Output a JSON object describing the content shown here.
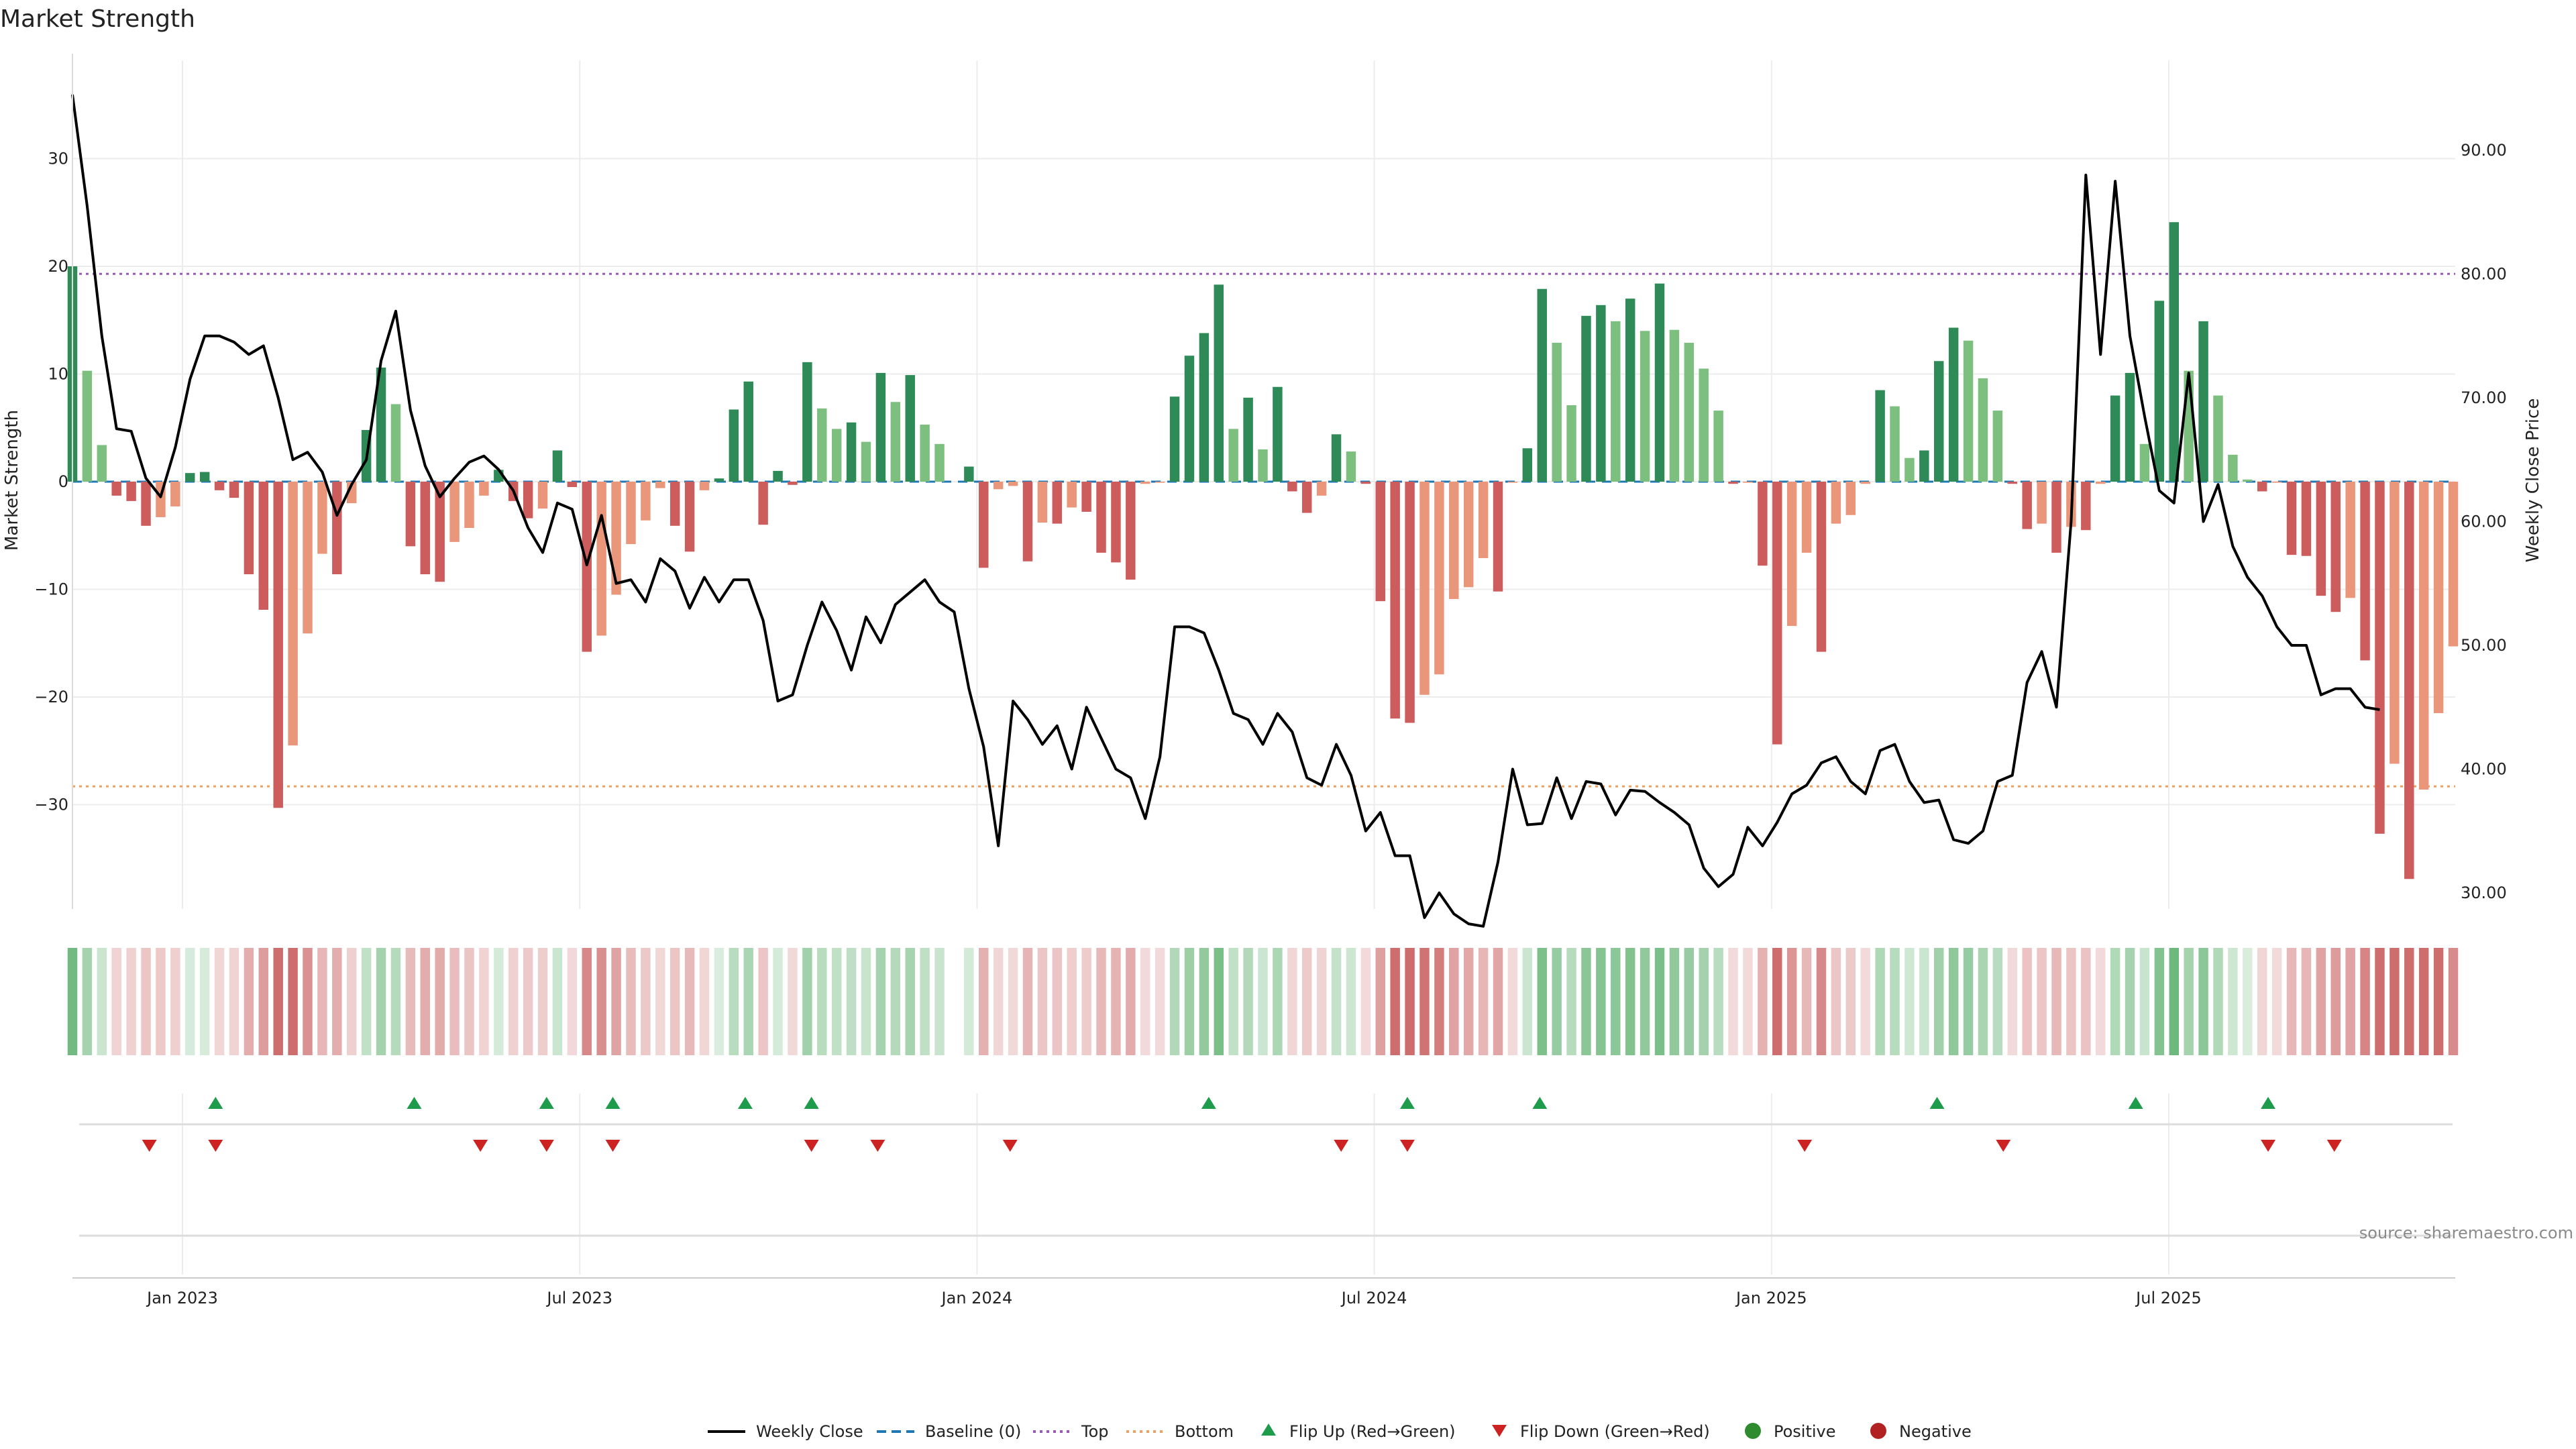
{
  "chart_data": {
    "type": "bar",
    "title": "Market Strength",
    "ylabel": "Market Strength",
    "y2label": "Weekly Close Price",
    "ylim": [
      -40,
      38
    ],
    "y2lim": [
      28,
      97
    ],
    "yticks": [
      30,
      20,
      10,
      0,
      -10,
      -20,
      -30
    ],
    "y2ticks": [
      "90.00",
      "80.00",
      "70.00",
      "60.00",
      "50.00",
      "40.00",
      "30.00"
    ],
    "xticks": [
      "Jan 2023",
      "Jul 2023",
      "Jan 2024",
      "Jul 2024",
      "Jan 2025",
      "Jul 2025"
    ],
    "reference_lines": {
      "top": 19.3,
      "bottom": -28.3,
      "baseline": 0
    },
    "grid": true,
    "legend_position": "bottom-center",
    "source": "source: sharemaestro.com",
    "strength": [
      20.0,
      10.3,
      3.4,
      -1.3,
      -1.8,
      -4.1,
      -3.3,
      -2.3,
      0.8,
      0.9,
      -0.8,
      -1.5,
      -8.6,
      -11.9,
      -30.3,
      -24.5,
      -14.1,
      -6.7,
      -8.6,
      -2.0,
      4.8,
      10.6,
      7.2,
      -6.0,
      -8.6,
      -9.3,
      -5.6,
      -4.3,
      -1.3,
      1.1,
      -1.8,
      -3.4,
      -2.5,
      2.9,
      -0.5,
      -15.8,
      -14.3,
      -10.5,
      -5.8,
      -3.6,
      -0.6,
      -4.1,
      -6.5,
      -0.8,
      0.3,
      6.7,
      9.3,
      -4.0,
      1.0,
      -0.3,
      11.1,
      6.8,
      4.9,
      5.5,
      3.7,
      10.1,
      7.4,
      9.9,
      5.3,
      3.5,
      null,
      1.4,
      -8.0,
      -0.7,
      -0.4,
      -7.4,
      -3.8,
      -3.9,
      -2.4,
      -2.8,
      -6.6,
      -7.5,
      -9.1,
      -0.2,
      -0.1,
      7.9,
      11.7,
      13.8,
      18.3,
      4.9,
      7.8,
      3.0,
      8.8,
      -0.9,
      -2.9,
      -1.3,
      4.4,
      2.8,
      -0.2,
      -11.1,
      -22.0,
      -22.4,
      -19.8,
      -17.9,
      -10.9,
      -9.8,
      -7.1,
      -10.2,
      -0.1,
      3.1,
      17.9,
      12.9,
      7.1,
      15.4,
      16.4,
      14.9,
      17.0,
      14.0,
      18.4,
      14.1,
      12.9,
      10.5,
      6.6,
      -0.2,
      -0.1,
      -7.8,
      -24.4,
      -13.4,
      -6.6,
      -15.8,
      -3.9,
      -3.1,
      -0.2,
      8.5,
      7.0,
      2.2,
      2.9,
      11.2,
      14.3,
      13.1,
      9.6,
      6.6,
      -0.2,
      -4.4,
      -3.9,
      -6.6,
      -4.2,
      -4.5,
      -0.2,
      8.0,
      10.1,
      3.5,
      16.8,
      24.1,
      10.3,
      14.9,
      8.0,
      2.5,
      0.2,
      -0.9,
      -0.1,
      -6.8,
      -6.9,
      -10.6,
      -12.1,
      -10.8,
      -16.6,
      -32.7,
      -26.2,
      -36.9,
      -28.6,
      -21.5,
      -15.3
    ],
    "weekly_close": [
      94.5,
      85.5,
      75.0,
      67.5,
      67.3,
      63.5,
      62.0,
      66.0,
      71.5,
      75.0,
      75.0,
      74.5,
      73.5,
      74.2,
      70.0,
      65.0,
      65.6,
      64.0,
      60.5,
      63.0,
      65.0,
      73.0,
      77.0,
      69.0,
      64.5,
      62.0,
      63.5,
      64.8,
      65.3,
      64.2,
      62.5,
      59.5,
      57.5,
      61.5,
      61.0,
      56.5,
      60.5,
      55.0,
      55.3,
      53.5,
      57.0,
      56.0,
      53.0,
      55.5,
      53.5,
      55.3,
      55.3,
      52.0,
      45.5,
      46.0,
      50.0,
      53.5,
      51.2,
      48.0,
      52.3,
      50.2,
      53.3,
      54.3,
      55.3,
      53.5,
      52.7,
      46.5,
      41.8,
      33.8,
      45.5,
      44.0,
      42.0,
      43.5,
      40.0,
      45.0,
      42.5,
      40.0,
      39.3,
      36.0,
      41.0,
      51.5,
      51.5,
      51.0,
      48.0,
      44.5,
      44.0,
      42.0,
      44.5,
      43.0,
      39.3,
      38.7,
      42.0,
      39.5,
      35.0,
      36.5,
      33.0,
      33.0,
      28.0,
      30.0,
      28.3,
      27.5,
      27.3,
      32.5,
      40.0,
      35.5,
      35.6,
      39.3,
      36.0,
      39.0,
      38.8,
      36.3,
      38.3,
      38.2,
      37.3,
      36.5,
      35.5,
      32.0,
      30.5,
      31.5,
      35.3,
      33.8,
      35.7,
      38.0,
      38.7,
      40.5,
      41.0,
      39.0,
      38.0,
      41.5,
      42.0,
      39.0,
      37.3,
      37.5,
      34.3,
      34.0,
      35.0,
      39.0,
      39.5,
      47.0,
      49.5,
      45.0,
      60.0,
      88.0,
      73.5,
      87.5,
      75.0,
      68.5,
      62.5,
      61.5,
      72.0,
      60.0,
      63.0,
      58.0,
      55.5,
      54.0,
      51.5,
      50.0,
      50.0,
      46.0,
      46.5,
      46.5,
      45.0,
      44.8
    ],
    "flip_up": [
      "Jan 2023",
      "Apr 2023",
      "Jun 2023",
      "Jul 2023",
      "Sep 2023",
      "Oct 2023",
      "Oct 2023",
      "Apr 2024",
      "Jul 2024",
      "Sep 2024",
      "Mar 2025",
      "Jun 2025",
      "Aug 2025"
    ],
    "flip_down": [
      "Dec 2022",
      "Jan 2023",
      "May 2023",
      "Jun 2023",
      "Jul 2023",
      "Oct 2023",
      "Nov 2023",
      "Jan 2024",
      "Jun 2024",
      "Jul 2024",
      "Jan 2025",
      "Apr 2025",
      "Aug 2025",
      "Sep 2025"
    ],
    "series": [
      {
        "name": "Weekly Close"
      },
      {
        "name": "Baseline (0)"
      },
      {
        "name": "Top"
      },
      {
        "name": "Bottom"
      },
      {
        "name": "Flip Up (Red→Green)"
      },
      {
        "name": "Flip Down (Green→Red)"
      },
      {
        "name": "Positive"
      },
      {
        "name": "Negative"
      }
    ],
    "colors": {
      "pos_dark": "#2e8a57",
      "pos_light": "#7dbf7e",
      "neg_dark": "#cd5c5c",
      "neg_light": "#e9967a",
      "line": "#000000",
      "baseline": "#1f77b4",
      "top": "#9b59b6",
      "bottom": "#f0a060",
      "flip_up": "#1e9b4b",
      "flip_down": "#cc2222",
      "positive": "#2e8b2e",
      "negative": "#b22222"
    }
  }
}
